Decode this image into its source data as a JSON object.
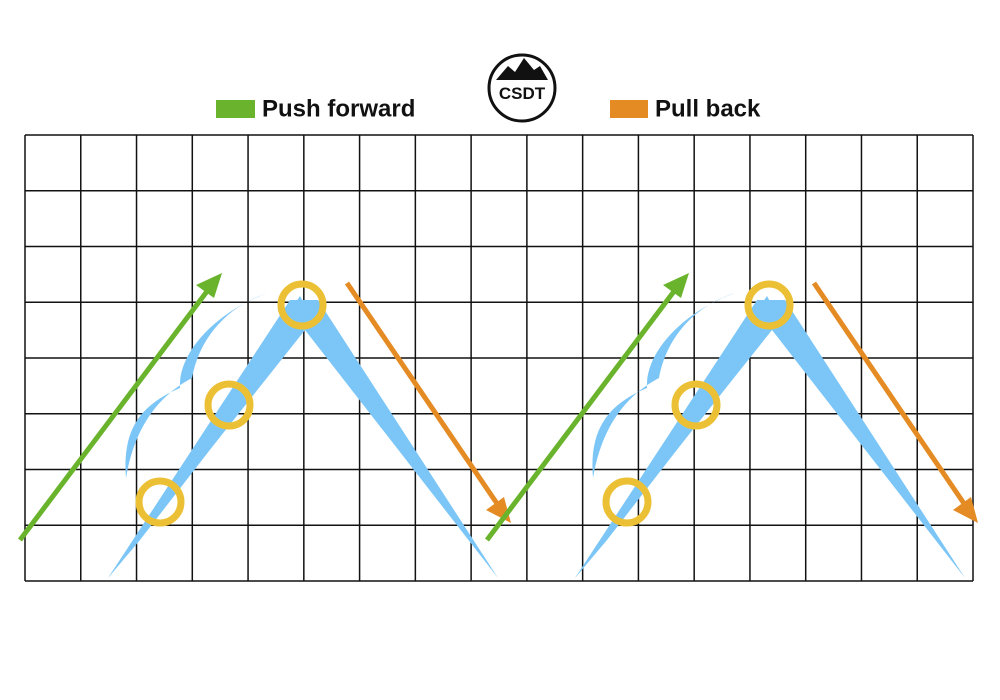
{
  "legend": [
    {
      "label": "Push forward"
    },
    {
      "label": "Pull back"
    }
  ],
  "logo": {
    "text": "CSDT"
  }
}
